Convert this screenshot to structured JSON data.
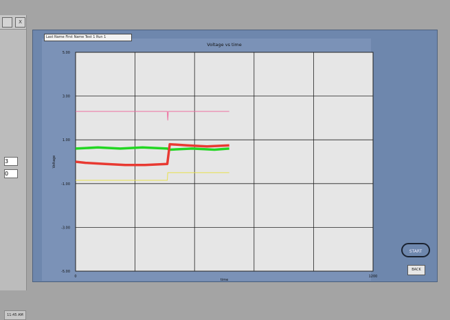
{
  "background_window": {
    "close_glyph": "X",
    "fields": [
      "3",
      "0"
    ]
  },
  "taskbar": {
    "clock": "11:45 AM"
  },
  "main_window": {
    "file_label": "Last Name First Name Test 1 Run 1",
    "start_label": "START",
    "back_label": "BACK"
  },
  "colors": {
    "plot_bg": "#e6e6e6",
    "panel_bg": "#6e87ad",
    "grid": "#202020",
    "series_pink": "#ee6fa0",
    "series_green": "#22d622",
    "series_red": "#e83a32",
    "series_yellow": "#e8e04a"
  },
  "chart_data": {
    "type": "line",
    "title": "Voltage vs time",
    "xlabel": "time",
    "ylabel": "Voltage",
    "xlim": [
      0,
      1200
    ],
    "ylim": [
      -5,
      5
    ],
    "grid": true,
    "x_tick_labels": [
      {
        "x": 0,
        "label": "0"
      },
      {
        "x": 1200,
        "label": "1200"
      }
    ],
    "y_tick_labels": [
      {
        "y": 5,
        "label": "5.00"
      },
      {
        "y": 3,
        "label": "3.00"
      },
      {
        "y": 1,
        "label": "1.00"
      },
      {
        "y": -1,
        "label": "-1.00"
      },
      {
        "y": -3,
        "label": "-3.00"
      },
      {
        "y": -5,
        "label": "-5.00"
      }
    ],
    "series": [
      {
        "color_key": "series_pink",
        "points": [
          [
            0,
            2.3
          ],
          [
            360,
            2.3
          ],
          [
            370,
            2.3
          ],
          [
            372,
            1.9
          ],
          [
            374,
            2.3
          ],
          [
            620,
            2.3
          ]
        ]
      },
      {
        "color_key": "series_green",
        "points": [
          [
            0,
            0.6
          ],
          [
            90,
            0.65
          ],
          [
            180,
            0.6
          ],
          [
            270,
            0.65
          ],
          [
            370,
            0.6
          ],
          [
            380,
            0.55
          ],
          [
            470,
            0.6
          ],
          [
            560,
            0.55
          ],
          [
            620,
            0.6
          ]
        ]
      },
      {
        "color_key": "series_red",
        "points": [
          [
            0,
            0.0
          ],
          [
            40,
            -0.05
          ],
          [
            120,
            -0.1
          ],
          [
            200,
            -0.15
          ],
          [
            280,
            -0.15
          ],
          [
            370,
            -0.1
          ],
          [
            380,
            0.8
          ],
          [
            450,
            0.75
          ],
          [
            530,
            0.7
          ],
          [
            620,
            0.75
          ]
        ]
      },
      {
        "color_key": "series_yellow",
        "points": [
          [
            0,
            -0.85
          ],
          [
            370,
            -0.85
          ],
          [
            372,
            -0.5
          ],
          [
            620,
            -0.5
          ]
        ]
      }
    ]
  }
}
